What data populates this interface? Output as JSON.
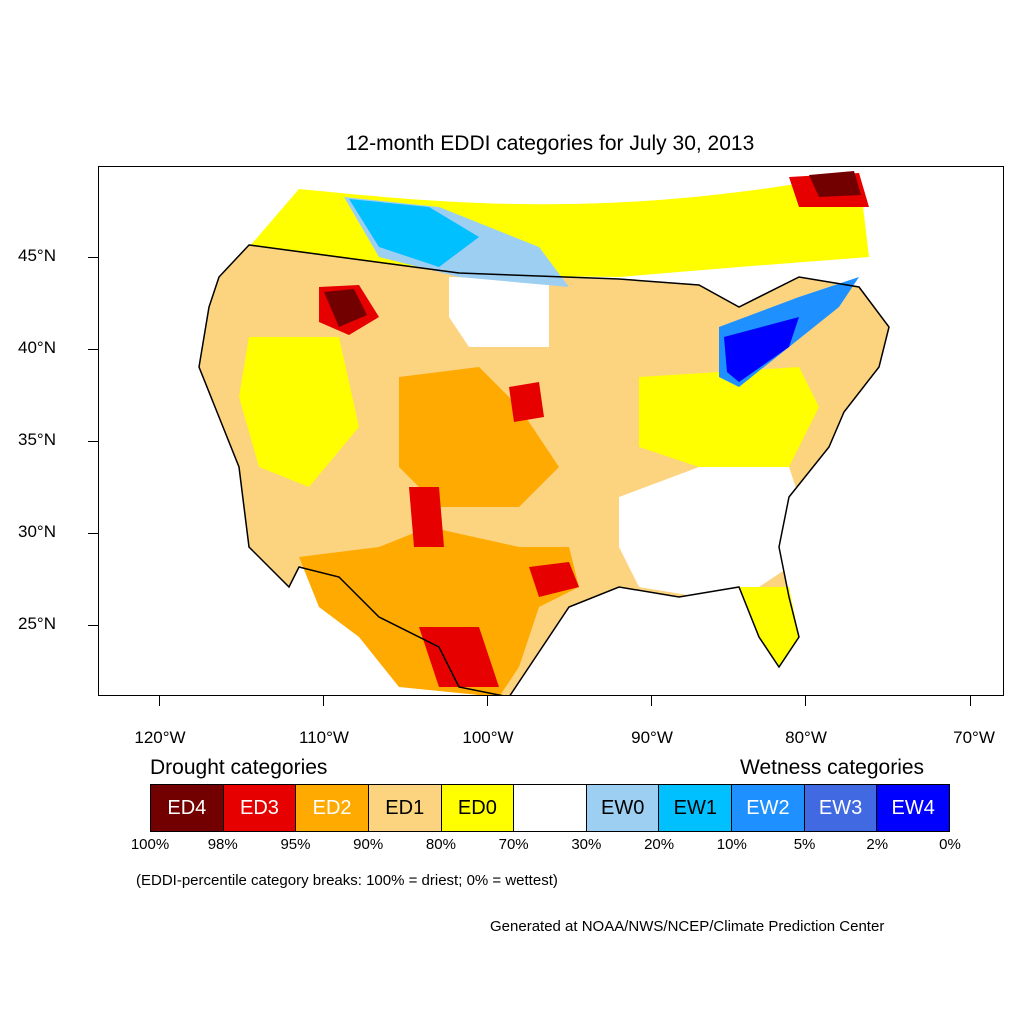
{
  "title": "12-month EDDI categories for July 30, 2013",
  "map": {
    "lat_labels": [
      "45°N",
      "40°N",
      "35°N",
      "30°N",
      "25°N"
    ],
    "lon_labels": [
      "120°W",
      "110°W",
      "100°W",
      "90°W",
      "80°W",
      "70°W"
    ]
  },
  "legend": {
    "drought_heading": "Drought categories",
    "wetness_heading": "Wetness categories",
    "categories": [
      {
        "label": "ED4",
        "color": "#730000"
      },
      {
        "label": "ED3",
        "color": "#e60000"
      },
      {
        "label": "ED2",
        "color": "#ffaa00"
      },
      {
        "label": "ED1",
        "color": "#fcd37f"
      },
      {
        "label": "ED0",
        "color": "#ffff00"
      },
      {
        "label": "",
        "color": "#ffffff"
      },
      {
        "label": "EW0",
        "color": "#9ccff2"
      },
      {
        "label": "EW1",
        "color": "#00c0ff"
      },
      {
        "label": "EW2",
        "color": "#1e90ff"
      },
      {
        "label": "EW3",
        "color": "#4169e1"
      },
      {
        "label": "EW4",
        "color": "#0000ff"
      }
    ],
    "breaks": [
      "100%",
      "98%",
      "95%",
      "90%",
      "80%",
      "70%",
      "30%",
      "20%",
      "10%",
      "5%",
      "2%",
      "0%"
    ],
    "note": "(EDDI-percentile category breaks: 100% = driest; 0% = wettest)"
  },
  "credit": "Generated at NOAA/NWS/NCEP/Climate Prediction Center"
}
